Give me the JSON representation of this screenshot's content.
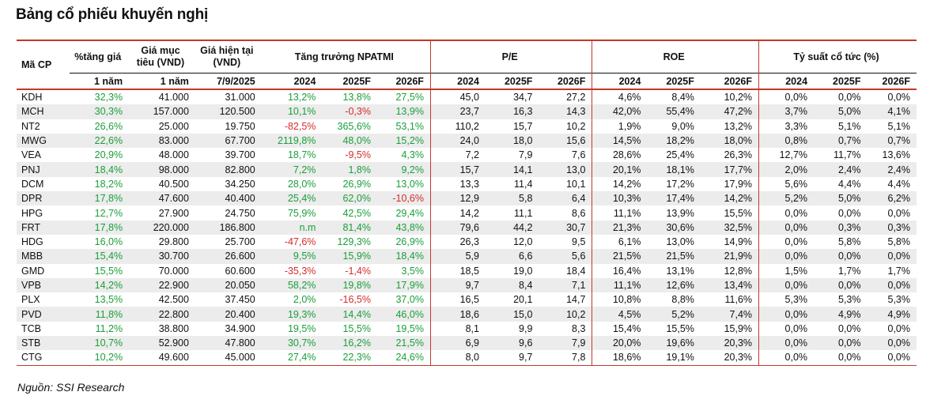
{
  "title": "Bảng cổ phiếu khuyến nghị",
  "source": "Nguồn: SSI Research",
  "colors": {
    "positive": "#1a9e3a",
    "negative": "#d62b2b",
    "rule": "#c0392b",
    "stripe": "#ececec"
  },
  "headers": {
    "ticker": "Mã CP",
    "pct_gain": "%tăng giá",
    "target_price": "Giá mục tiêu (VND)",
    "current_price": "Giá hiện tại (VND)",
    "growth": "Tăng trưởng NPATMI",
    "pe": "P/E",
    "roe": "ROE",
    "dividend": "Tỷ suất cổ tức (%)"
  },
  "subheaders": [
    "1 năm",
    "1 năm",
    "7/9/2025",
    "2024",
    "2025F",
    "2026F",
    "2024",
    "2025F",
    "2026F",
    "2024",
    "2025F",
    "2026F",
    "2024",
    "2025F",
    "2026F"
  ],
  "rows": [
    {
      "ticker": "KDH",
      "pct_gain": "32,3%",
      "target": "41.000",
      "price": "31.000",
      "g24": "13,2%",
      "g25": "13,8%",
      "g26": "27,5%",
      "pe24": "45,0",
      "pe25": "34,7",
      "pe26": "27,2",
      "roe24": "4,6%",
      "roe25": "8,4%",
      "roe26": "10,2%",
      "dy24": "0,0%",
      "dy25": "0,0%",
      "dy26": "0,0%"
    },
    {
      "ticker": "MCH",
      "pct_gain": "30,3%",
      "target": "157.000",
      "price": "120.500",
      "g24": "10,1%",
      "g25": "-0,3%",
      "g26": "13,9%",
      "pe24": "23,7",
      "pe25": "16,3",
      "pe26": "14,3",
      "roe24": "42,0%",
      "roe25": "55,4%",
      "roe26": "47,2%",
      "dy24": "3,7%",
      "dy25": "5,0%",
      "dy26": "4,1%"
    },
    {
      "ticker": "NT2",
      "pct_gain": "26,6%",
      "target": "25.000",
      "price": "19.750",
      "g24": "-82,5%",
      "g25": "365,6%",
      "g26": "53,1%",
      "pe24": "110,2",
      "pe25": "15,7",
      "pe26": "10,2",
      "roe24": "1,9%",
      "roe25": "9,0%",
      "roe26": "13,2%",
      "dy24": "3,3%",
      "dy25": "5,1%",
      "dy26": "5,1%"
    },
    {
      "ticker": "MWG",
      "pct_gain": "22,6%",
      "target": "83.000",
      "price": "67.700",
      "g24": "2119,8%",
      "g25": "48,0%",
      "g26": "15,2%",
      "pe24": "24,0",
      "pe25": "18,0",
      "pe26": "15,6",
      "roe24": "14,5%",
      "roe25": "18,2%",
      "roe26": "18,0%",
      "dy24": "0,8%",
      "dy25": "0,7%",
      "dy26": "0,7%"
    },
    {
      "ticker": "VEA",
      "pct_gain": "20,9%",
      "target": "48.000",
      "price": "39.700",
      "g24": "18,7%",
      "g25": "-9,5%",
      "g26": "4,3%",
      "pe24": "7,2",
      "pe25": "7,9",
      "pe26": "7,6",
      "roe24": "28,6%",
      "roe25": "25,4%",
      "roe26": "26,3%",
      "dy24": "12,7%",
      "dy25": "11,7%",
      "dy26": "13,6%"
    },
    {
      "ticker": "PNJ",
      "pct_gain": "18,4%",
      "target": "98.000",
      "price": "82.800",
      "g24": "7,2%",
      "g25": "1,8%",
      "g26": "9,2%",
      "pe24": "15,7",
      "pe25": "14,1",
      "pe26": "13,0",
      "roe24": "20,1%",
      "roe25": "18,1%",
      "roe26": "17,7%",
      "dy24": "2,0%",
      "dy25": "2,4%",
      "dy26": "2,4%"
    },
    {
      "ticker": "DCM",
      "pct_gain": "18,2%",
      "target": "40.500",
      "price": "34.250",
      "g24": "28,0%",
      "g25": "26,9%",
      "g26": "13,0%",
      "pe24": "13,3",
      "pe25": "11,4",
      "pe26": "10,1",
      "roe24": "14,2%",
      "roe25": "17,2%",
      "roe26": "17,9%",
      "dy24": "5,6%",
      "dy25": "4,4%",
      "dy26": "4,4%"
    },
    {
      "ticker": "DPR",
      "pct_gain": "17,8%",
      "target": "47.600",
      "price": "40.400",
      "g24": "25,4%",
      "g25": "62,0%",
      "g26": "-10,6%",
      "pe24": "12,9",
      "pe25": "5,8",
      "pe26": "6,4",
      "roe24": "10,3%",
      "roe25": "17,4%",
      "roe26": "14,2%",
      "dy24": "5,2%",
      "dy25": "5,0%",
      "dy26": "6,2%"
    },
    {
      "ticker": "HPG",
      "pct_gain": "12,7%",
      "target": "27.900",
      "price": "24.750",
      "g24": "75,9%",
      "g25": "42,5%",
      "g26": "29,4%",
      "pe24": "14,2",
      "pe25": "11,1",
      "pe26": "8,6",
      "roe24": "11,1%",
      "roe25": "13,9%",
      "roe26": "15,5%",
      "dy24": "0,0%",
      "dy25": "0,0%",
      "dy26": "0,0%"
    },
    {
      "ticker": "FRT",
      "pct_gain": "17,8%",
      "target": "220.000",
      "price": "186.800",
      "g24": "n.m",
      "g25": "81,4%",
      "g26": "43,8%",
      "pe24": "79,6",
      "pe25": "44,2",
      "pe26": "30,7",
      "roe24": "21,3%",
      "roe25": "30,6%",
      "roe26": "32,5%",
      "dy24": "0,0%",
      "dy25": "0,3%",
      "dy26": "0,3%"
    },
    {
      "ticker": "HDG",
      "pct_gain": "16,0%",
      "target": "29.800",
      "price": "25.700",
      "g24": "-47,6%",
      "g25": "129,3%",
      "g26": "26,9%",
      "pe24": "26,3",
      "pe25": "12,0",
      "pe26": "9,5",
      "roe24": "6,1%",
      "roe25": "13,0%",
      "roe26": "14,9%",
      "dy24": "0,0%",
      "dy25": "5,8%",
      "dy26": "5,8%"
    },
    {
      "ticker": "MBB",
      "pct_gain": "15,4%",
      "target": "30.700",
      "price": "26.600",
      "g24": "9,5%",
      "g25": "15,9%",
      "g26": "18,4%",
      "pe24": "5,9",
      "pe25": "6,6",
      "pe26": "5,6",
      "roe24": "21,5%",
      "roe25": "21,5%",
      "roe26": "21,9%",
      "dy24": "0,0%",
      "dy25": "0,0%",
      "dy26": "0,0%"
    },
    {
      "ticker": "GMD",
      "pct_gain": "15,5%",
      "target": "70.000",
      "price": "60.600",
      "g24": "-35,3%",
      "g25": "-1,4%",
      "g26": "3,5%",
      "pe24": "18,5",
      "pe25": "19,0",
      "pe26": "18,4",
      "roe24": "16,4%",
      "roe25": "13,1%",
      "roe26": "12,8%",
      "dy24": "1,5%",
      "dy25": "1,7%",
      "dy26": "1,7%"
    },
    {
      "ticker": "VPB",
      "pct_gain": "14,2%",
      "target": "22.900",
      "price": "20.050",
      "g24": "58,2%",
      "g25": "19,8%",
      "g26": "17,9%",
      "pe24": "9,7",
      "pe25": "8,4",
      "pe26": "7,1",
      "roe24": "11,1%",
      "roe25": "12,6%",
      "roe26": "13,4%",
      "dy24": "0,0%",
      "dy25": "0,0%",
      "dy26": "0,0%"
    },
    {
      "ticker": "PLX",
      "pct_gain": "13,5%",
      "target": "42.500",
      "price": "37.450",
      "g24": "2,0%",
      "g25": "-16,5%",
      "g26": "37,0%",
      "pe24": "16,5",
      "pe25": "20,1",
      "pe26": "14,7",
      "roe24": "10,8%",
      "roe25": "8,8%",
      "roe26": "11,6%",
      "dy24": "5,3%",
      "dy25": "5,3%",
      "dy26": "5,3%"
    },
    {
      "ticker": "PVD",
      "pct_gain": "11,8%",
      "target": "22.800",
      "price": "20.400",
      "g24": "19,3%",
      "g25": "14,4%",
      "g26": "46,0%",
      "pe24": "18,6",
      "pe25": "15,0",
      "pe26": "10,2",
      "roe24": "4,5%",
      "roe25": "5,2%",
      "roe26": "7,4%",
      "dy24": "0,0%",
      "dy25": "4,9%",
      "dy26": "4,9%"
    },
    {
      "ticker": "TCB",
      "pct_gain": "11,2%",
      "target": "38.800",
      "price": "34.900",
      "g24": "19,5%",
      "g25": "15,5%",
      "g26": "19,5%",
      "pe24": "8,1",
      "pe25": "9,9",
      "pe26": "8,3",
      "roe24": "15,4%",
      "roe25": "15,5%",
      "roe26": "15,9%",
      "dy24": "0,0%",
      "dy25": "0,0%",
      "dy26": "0,0%"
    },
    {
      "ticker": "STB",
      "pct_gain": "10,7%",
      "target": "52.900",
      "price": "47.800",
      "g24": "30,7%",
      "g25": "16,2%",
      "g26": "21,5%",
      "pe24": "6,9",
      "pe25": "9,6",
      "pe26": "7,9",
      "roe24": "20,0%",
      "roe25": "19,6%",
      "roe26": "20,3%",
      "dy24": "0,0%",
      "dy25": "0,0%",
      "dy26": "0,0%"
    },
    {
      "ticker": "CTG",
      "pct_gain": "10,2%",
      "target": "49.600",
      "price": "45.000",
      "g24": "27,4%",
      "g25": "22,3%",
      "g26": "24,6%",
      "pe24": "8,0",
      "pe25": "9,7",
      "pe26": "7,8",
      "roe24": "18,6%",
      "roe25": "19,1%",
      "roe26": "20,3%",
      "dy24": "0,0%",
      "dy25": "0,0%",
      "dy26": "0,0%"
    }
  ]
}
